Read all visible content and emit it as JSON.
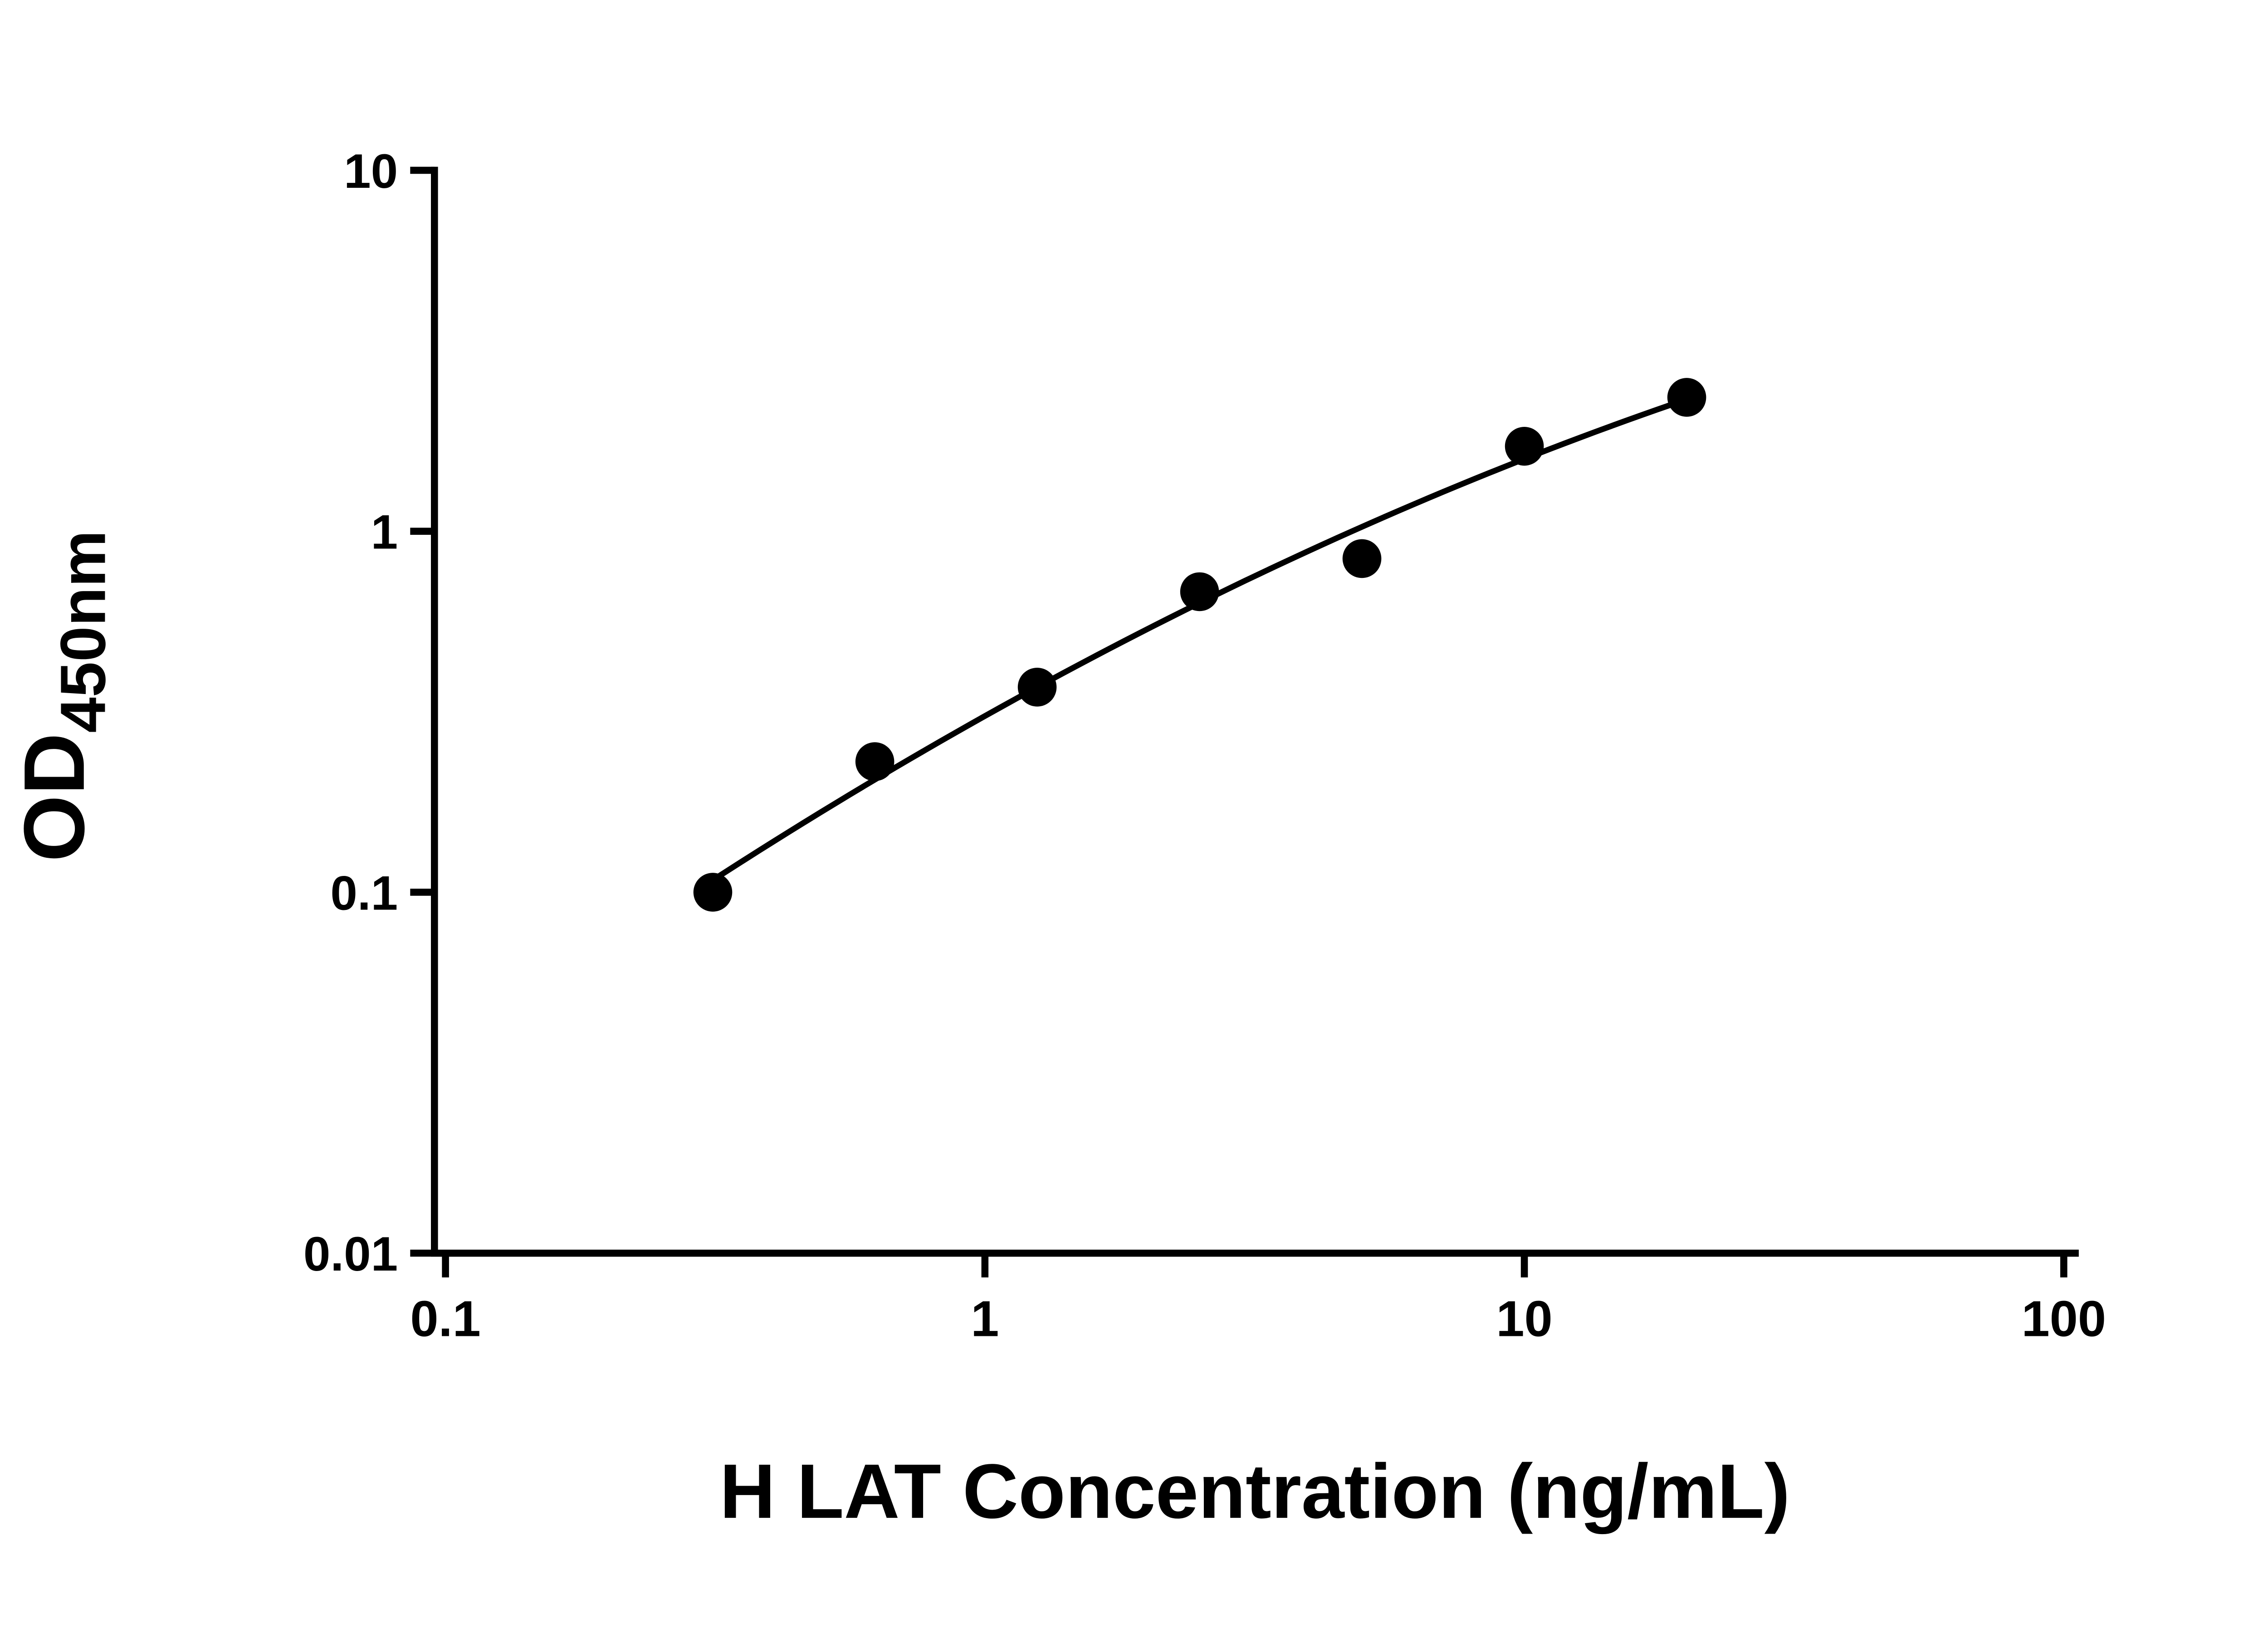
{
  "colors": {
    "ink": "#000000",
    "background": "#ffffff"
  },
  "chart_data": {
    "type": "scatter",
    "subtype": "log-log standard curve with fitted smooth line",
    "xlabel": "H LAT Concentration (ng/mL)",
    "ylabel_main": "OD",
    "ylabel_sub": "450nm",
    "x_scale": "log10",
    "y_scale": "log10",
    "xlim": [
      0.1,
      100
    ],
    "ylim": [
      0.01,
      10
    ],
    "grid": false,
    "legend": false,
    "x_ticks": [
      {
        "value": 0.1,
        "label": "0.1"
      },
      {
        "value": 1,
        "label": "1"
      },
      {
        "value": 10,
        "label": "10"
      },
      {
        "value": 100,
        "label": "100"
      }
    ],
    "y_ticks": [
      {
        "value": 10,
        "label": "10"
      },
      {
        "value": 1,
        "label": "1"
      },
      {
        "value": 0.1,
        "label": "0.1"
      },
      {
        "value": 0.01,
        "label": "0.01"
      }
    ],
    "series": [
      {
        "marker": "filled-circle",
        "color": "#000000",
        "fit": "smooth curve",
        "points": [
          {
            "x": 0.313,
            "y": 0.1
          },
          {
            "x": 0.625,
            "y": 0.23
          },
          {
            "x": 1.25,
            "y": 0.37
          },
          {
            "x": 2.5,
            "y": 0.68
          },
          {
            "x": 5,
            "y": 0.84
          },
          {
            "x": 10,
            "y": 1.72
          },
          {
            "x": 20,
            "y": 2.35
          }
        ]
      }
    ]
  }
}
